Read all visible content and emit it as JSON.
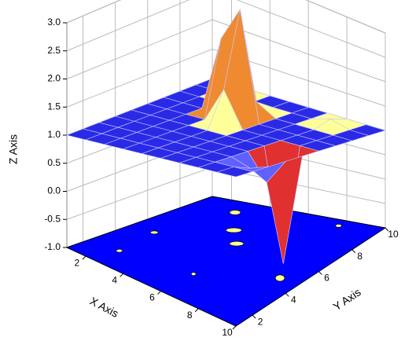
{
  "chart_data": {
    "type": "surface3d",
    "x_label": "X Axis",
    "y_label": "Y Axis",
    "z_label": "Z Axis",
    "x": [
      1,
      2,
      3,
      4,
      5,
      6,
      7,
      8,
      9,
      10
    ],
    "y": [
      1,
      2,
      3,
      4,
      5,
      6,
      7,
      8,
      9,
      10
    ],
    "z": [
      [
        1,
        1,
        1,
        1,
        1,
        1,
        1,
        1,
        1,
        1
      ],
      [
        1,
        1,
        1,
        1,
        1,
        1,
        1,
        1,
        1,
        1
      ],
      [
        1,
        1,
        1,
        1,
        1,
        1,
        1,
        1,
        0.9,
        1
      ],
      [
        1,
        1,
        1,
        1,
        1,
        1,
        1,
        1,
        0.6,
        1
      ],
      [
        1,
        1,
        1,
        1,
        1,
        1,
        1,
        1,
        -0.8,
        1
      ],
      [
        1,
        1,
        1,
        1,
        1.6,
        1,
        1,
        1,
        1,
        1
      ],
      [
        1,
        1,
        1,
        2.3,
        2.9,
        1,
        1,
        1,
        1,
        1
      ],
      [
        1,
        1,
        1,
        1,
        1.2,
        1,
        1,
        1,
        1,
        1
      ],
      [
        1,
        1,
        1.3,
        1,
        1,
        1,
        1,
        1.1,
        1,
        1
      ],
      [
        1,
        1,
        1,
        1,
        1,
        1,
        1,
        1,
        1,
        1
      ]
    ],
    "surface_color": "#2a2ae6",
    "floor_color": "#0000ff",
    "xlim": [
      1,
      10
    ],
    "ylim": [
      1,
      10
    ],
    "zlim": [
      -1,
      3
    ],
    "xticks": [
      2,
      4,
      6,
      8,
      10
    ],
    "yticks": [
      2,
      4,
      6,
      8,
      10
    ],
    "zticks": [
      {
        "value": -1,
        "label": "-1.0"
      },
      {
        "value": -0.5,
        "label": "-0.5"
      },
      {
        "value": 0,
        "label": "0.0"
      },
      {
        "value": 0.5,
        "label": "0.5"
      },
      {
        "value": 1,
        "label": "1.0"
      },
      {
        "value": 1.5,
        "label": "1.5"
      },
      {
        "value": 2,
        "label": "2.0"
      },
      {
        "value": 2.5,
        "label": "2.5"
      },
      {
        "value": 3,
        "label": "3.0"
      }
    ],
    "grid": true
  }
}
